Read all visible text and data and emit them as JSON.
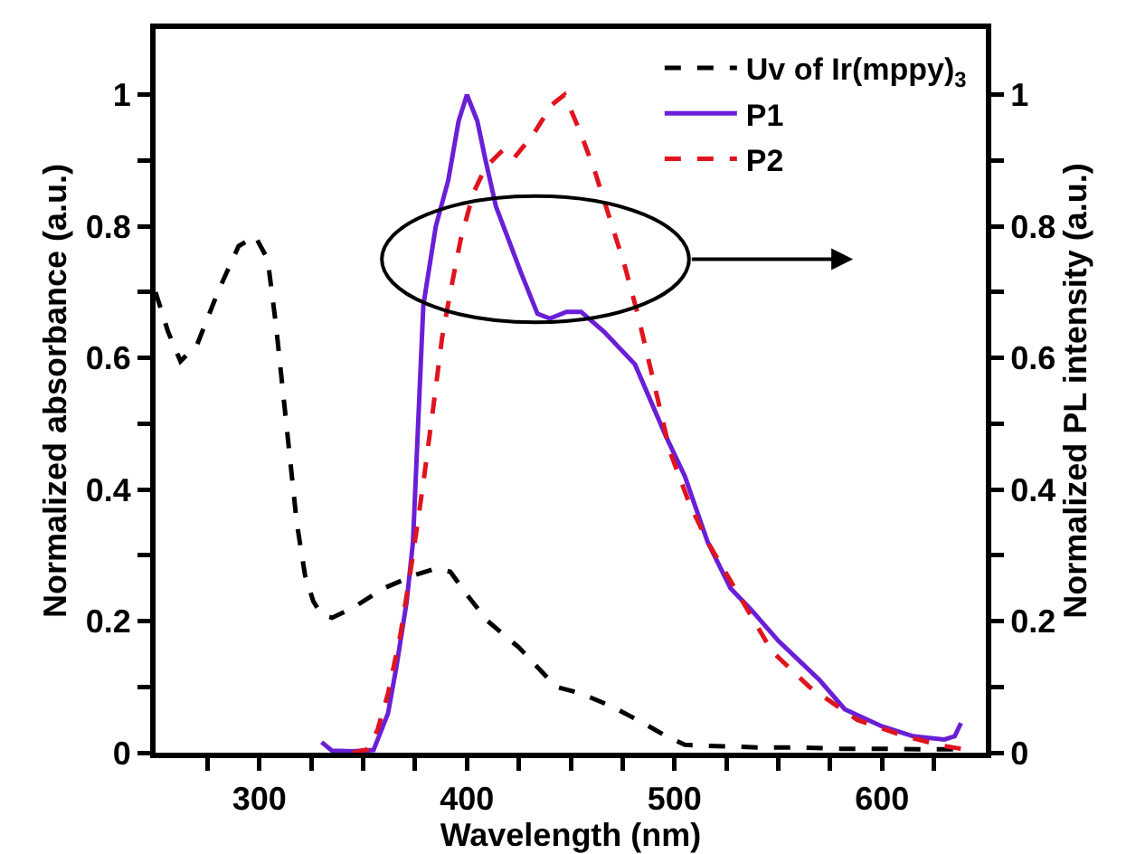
{
  "chart_data": {
    "type": "line",
    "xlabel": "Wavelength (nm)",
    "ylabel": "Normalized absorbance (a.u.)",
    "y2label": "Normalized PL intensity (a.u.)",
    "xlim": [
      250,
      650
    ],
    "xticks": [
      {
        "value": 275,
        "label": null
      },
      300,
      {
        "value": 325,
        "label": null
      },
      {
        "value": 350,
        "label": null
      },
      {
        "value": 375,
        "label": null
      },
      400,
      {
        "value": 425,
        "label": null
      },
      {
        "value": 450,
        "label": null
      },
      {
        "value": 475,
        "label": null
      },
      500,
      {
        "value": 525,
        "label": null
      },
      {
        "value": 550,
        "label": null
      },
      {
        "value": 575,
        "label": null
      },
      600,
      {
        "value": 625,
        "label": null
      }
    ],
    "ylim": [
      0,
      1.1
    ],
    "yticks": [
      0,
      {
        "value": 0.1,
        "label": null
      },
      0.2,
      {
        "value": 0.3,
        "label": null
      },
      0.4,
      {
        "value": 0.5,
        "label": null
      },
      0.6,
      {
        "value": 0.7,
        "label": null
      },
      0.8,
      {
        "value": 0.9,
        "label": null
      },
      1
    ],
    "y2lim": [
      0,
      1.1
    ],
    "y2ticks": [
      0,
      {
        "value": 0.1,
        "label": null
      },
      0.2,
      {
        "value": 0.3,
        "label": null
      },
      0.4,
      {
        "value": 0.5,
        "label": null
      },
      0.6,
      {
        "value": 0.7,
        "label": null
      },
      0.8,
      {
        "value": 0.9,
        "label": null
      },
      1
    ],
    "grid": false,
    "legend": "top right",
    "marker": "none",
    "series": [
      {
        "name": "Uv of Ir(mppy)$_{3}$",
        "color": "#000000",
        "line_style": "dashed",
        "x": [
          250,
          256,
          262,
          270,
          280,
          290,
          298,
          304,
          308,
          313,
          318,
          322,
          326,
          330,
          335,
          345,
          360,
          375,
          385,
          392,
          400,
          410,
          425,
          443,
          455,
          470,
          485,
          496,
          505,
          520,
          540,
          560,
          580,
          600,
          620,
          640
        ],
        "values": [
          0.7,
          0.64,
          0.595,
          0.62,
          0.7,
          0.77,
          0.785,
          0.75,
          0.65,
          0.5,
          0.35,
          0.27,
          0.23,
          0.21,
          0.205,
          0.22,
          0.25,
          0.27,
          0.28,
          0.275,
          0.24,
          0.2,
          0.16,
          0.1,
          0.09,
          0.07,
          0.045,
          0.025,
          0.012,
          0.01,
          0.008,
          0.008,
          0.006,
          0.006,
          0.005,
          0.005
        ]
      },
      {
        "name": "P1",
        "color": "#6a1fd6",
        "line_style": "solid",
        "axis": "y2",
        "x": [
          330,
          335,
          345,
          355,
          362,
          366,
          371,
          374,
          379,
          385,
          391,
          396,
          400,
          405,
          409,
          414,
          420,
          426,
          434,
          440,
          448,
          455,
          466,
          481,
          496,
          505,
          516,
          527,
          537,
          550,
          560,
          570,
          582,
          600,
          615,
          630,
          635,
          638
        ],
        "values": [
          0.016,
          0.003,
          0.002,
          0.004,
          0.06,
          0.13,
          0.23,
          0.32,
          0.68,
          0.8,
          0.87,
          0.96,
          1.0,
          0.96,
          0.9,
          0.83,
          0.78,
          0.73,
          0.667,
          0.66,
          0.67,
          0.67,
          0.64,
          0.59,
          0.48,
          0.42,
          0.32,
          0.25,
          0.217,
          0.17,
          0.14,
          0.11,
          0.066,
          0.04,
          0.025,
          0.02,
          0.025,
          0.045
        ]
      },
      {
        "name": "P2",
        "color": "#e0141e",
        "line_style": "dashed",
        "axis": "y2",
        "x": [
          345,
          352,
          357,
          362,
          368,
          374,
          379,
          384,
          388,
          392,
          397,
          403,
          409,
          418,
          423,
          432,
          441,
          447,
          455,
          462,
          469,
          476,
          482,
          488,
          498,
          507,
          516,
          530,
          547,
          565,
          588,
          611,
          630,
          640
        ],
        "values": [
          0.0,
          0.005,
          0.035,
          0.09,
          0.18,
          0.3,
          0.41,
          0.53,
          0.63,
          0.7,
          0.78,
          0.85,
          0.89,
          0.918,
          0.905,
          0.94,
          0.985,
          1.0,
          0.94,
          0.88,
          0.81,
          0.74,
          0.67,
          0.59,
          0.456,
          0.38,
          0.32,
          0.245,
          0.154,
          0.1,
          0.05,
          0.025,
          0.01,
          0.005
        ]
      }
    ]
  }
}
